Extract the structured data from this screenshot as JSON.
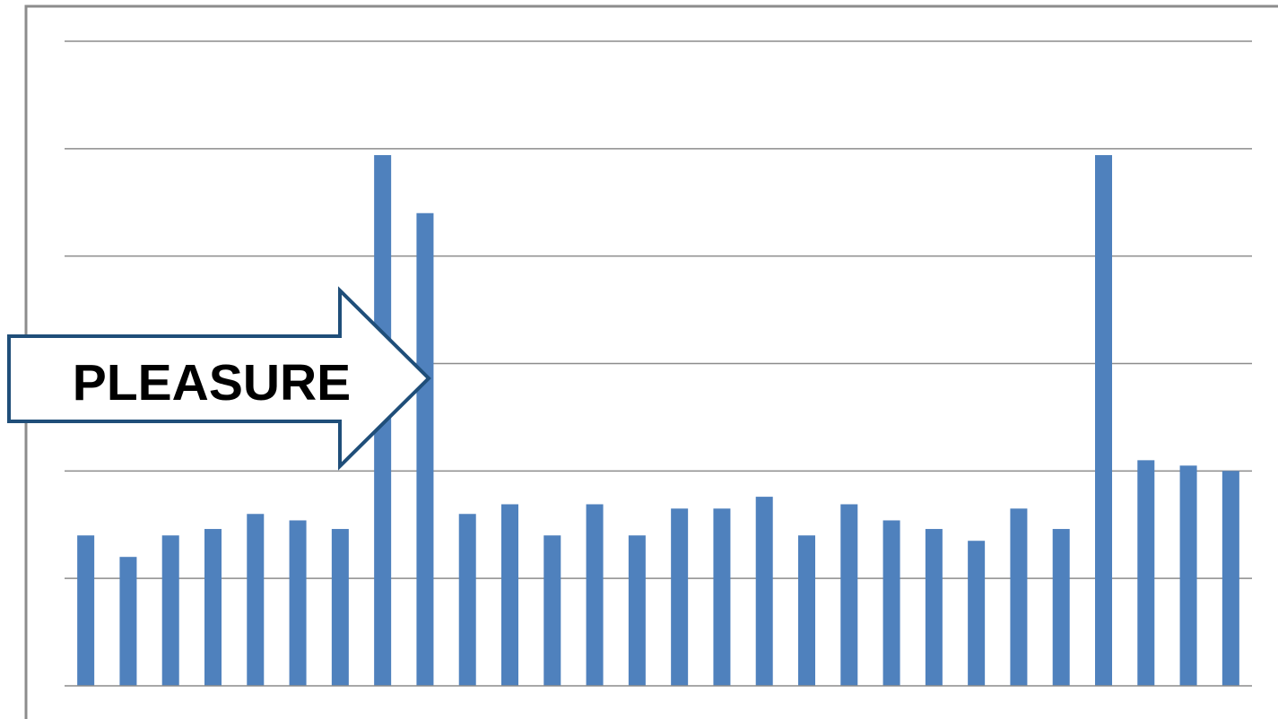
{
  "chart_data": {
    "type": "bar",
    "values": [
      1.4,
      1.2,
      1.4,
      1.46,
      1.6,
      1.54,
      1.46,
      4.94,
      4.4,
      1.6,
      1.69,
      1.4,
      1.69,
      1.4,
      1.65,
      1.65,
      1.76,
      1.4,
      1.69,
      1.54,
      1.46,
      1.35,
      1.65,
      1.46,
      4.94,
      2.1,
      2.05,
      2.0
    ],
    "ylim": [
      0,
      6
    ],
    "gridlines": [
      1,
      2,
      3,
      4,
      5,
      6
    ],
    "grid": true,
    "bar_color": "#4f81bd",
    "gridline_color": "#8c8c8c",
    "frame_color": "#8c8c8c",
    "annotation": {
      "text": "PLEASURE",
      "shape": "block-arrow-right",
      "stroke_color": "#1f4e79",
      "fill_color": "#ffffff",
      "text_color": "#000000"
    }
  }
}
